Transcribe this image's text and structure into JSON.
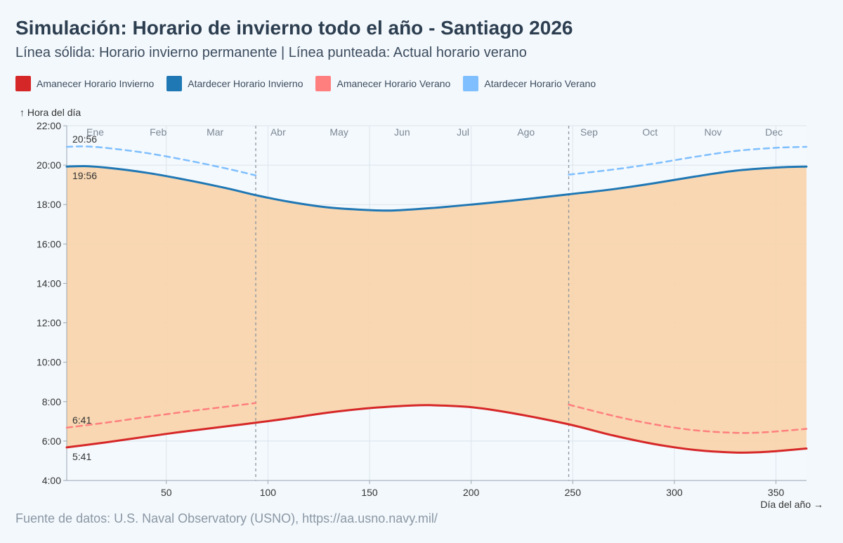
{
  "header": {
    "title": "Simulación: Horario de invierno todo el año - Santiago 2026",
    "subtitle": "Línea sólida: Horario invierno permanente | Línea punteada: Actual horario verano"
  },
  "legend": [
    {
      "label": "Amanecer Horario Invierno",
      "color": "#d62728"
    },
    {
      "label": "Atardecer Horario Invierno",
      "color": "#1f77b4"
    },
    {
      "label": "Amanecer Horario Verano",
      "color": "#ff7f7f"
    },
    {
      "label": "Atardecer Horario Verano",
      "color": "#7fbfff"
    }
  ],
  "footer": {
    "source": "Fuente de datos: U.S. Naval Observatory (USNO), https://aa.usno.navy.mil/"
  },
  "chart_data": {
    "type": "line",
    "xlabel": "Día del año →",
    "ylabel": "↑ Hora del día",
    "xlim": [
      1,
      365
    ],
    "ylim": [
      4,
      22
    ],
    "x_ticks": [
      50,
      100,
      150,
      200,
      250,
      300,
      350
    ],
    "y_ticks": [
      "4:00",
      "6:00",
      "8:00",
      "10:00",
      "12:00",
      "14:00",
      "16:00",
      "18:00",
      "20:00",
      "22:00"
    ],
    "month_labels": [
      {
        "label": "Ene",
        "day": 15
      },
      {
        "label": "Feb",
        "day": 46
      },
      {
        "label": "Mar",
        "day": 74
      },
      {
        "label": "Abr",
        "day": 105
      },
      {
        "label": "May",
        "day": 135
      },
      {
        "label": "Jun",
        "day": 166
      },
      {
        "label": "Jul",
        "day": 196
      },
      {
        "label": "Ago",
        "day": 227
      },
      {
        "label": "Sep",
        "day": 258
      },
      {
        "label": "Oct",
        "day": 288
      },
      {
        "label": "Nov",
        "day": 319
      },
      {
        "label": "Dec",
        "day": 349
      }
    ],
    "dst_boundaries": [
      94,
      248
    ],
    "daylight_fill_color": "#f8d5ae",
    "series": [
      {
        "name": "Amanecer Horario Invierno",
        "color": "#d62728",
        "dashed": false,
        "x": [
          1,
          20,
          40,
          60,
          80,
          94,
          110,
          130,
          150,
          170,
          180,
          200,
          220,
          248,
          270,
          290,
          310,
          330,
          345,
          365
        ],
        "y": [
          5.68,
          5.93,
          6.22,
          6.5,
          6.75,
          6.93,
          7.15,
          7.45,
          7.67,
          7.8,
          7.82,
          7.72,
          7.42,
          6.85,
          6.28,
          5.85,
          5.55,
          5.42,
          5.45,
          5.62
        ]
      },
      {
        "name": "Atardecer Horario Invierno",
        "color": "#1f77b4",
        "dashed": false,
        "x": [
          1,
          10,
          20,
          40,
          60,
          80,
          94,
          110,
          130,
          150,
          162,
          180,
          200,
          220,
          248,
          270,
          290,
          310,
          330,
          350,
          365
        ],
        "y": [
          19.93,
          19.95,
          19.88,
          19.62,
          19.25,
          18.82,
          18.48,
          18.15,
          17.85,
          17.72,
          17.7,
          17.82,
          18.0,
          18.2,
          18.52,
          18.78,
          19.08,
          19.42,
          19.72,
          19.88,
          19.93
        ]
      },
      {
        "name": "Amanecer Horario Verano",
        "color": "#ff7f7f",
        "dashed": true,
        "segments": [
          {
            "x": [
              1,
              20,
              40,
              60,
              80,
              94
            ],
            "y": [
              6.68,
              6.93,
              7.22,
              7.5,
              7.75,
              7.93
            ]
          },
          {
            "x": [
              248,
              270,
              290,
              310,
              330,
              345,
              365
            ],
            "y": [
              7.85,
              7.28,
              6.85,
              6.55,
              6.42,
              6.45,
              6.62
            ]
          }
        ]
      },
      {
        "name": "Atardecer Horario Verano",
        "color": "#7fbfff",
        "dashed": true,
        "segments": [
          {
            "x": [
              1,
              10,
              20,
              40,
              60,
              80,
              94
            ],
            "y": [
              20.93,
              20.95,
              20.88,
              20.62,
              20.25,
              19.82,
              19.48
            ]
          },
          {
            "x": [
              248,
              270,
              290,
              310,
              330,
              350,
              365
            ],
            "y": [
              19.52,
              19.78,
              20.08,
              20.42,
              20.72,
              20.88,
              20.93
            ]
          }
        ]
      }
    ],
    "annotations": [
      {
        "text": "20:56",
        "x": 1,
        "y": 20.93,
        "position": "above"
      },
      {
        "text": "19:56",
        "x": 1,
        "y": 19.93,
        "position": "below"
      },
      {
        "text": "6:41",
        "x": 1,
        "y": 6.68,
        "position": "above"
      },
      {
        "text": "5:41",
        "x": 1,
        "y": 5.68,
        "position": "below"
      }
    ]
  }
}
